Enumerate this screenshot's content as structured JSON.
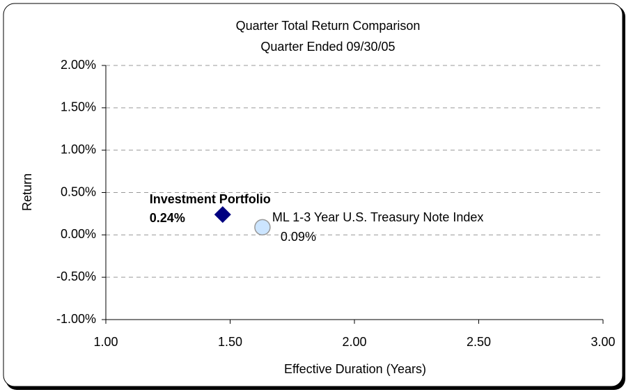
{
  "chart_data": {
    "type": "scatter",
    "title": "Quarter Total Return Comparison",
    "subtitle": "Quarter Ended 09/30/05",
    "x_label": "Effective Duration (Years)",
    "y_label": "Return",
    "xlim": [
      1,
      3
    ],
    "xticks": [
      {
        "value": 1,
        "label": "1.00"
      },
      {
        "value": 1.5,
        "label": "1.50"
      },
      {
        "value": 2,
        "label": "2.00"
      },
      {
        "value": 2.5,
        "label": "2.50"
      },
      {
        "value": 3,
        "label": "3.00"
      }
    ],
    "ylim": [
      -1,
      2
    ],
    "yticks": [
      {
        "value": -1,
        "label": "-1.00%"
      },
      {
        "value": -0.5,
        "label": "-0.50%"
      },
      {
        "value": 0,
        "label": "0.00%"
      },
      {
        "value": 0.5,
        "label": "0.50%"
      },
      {
        "value": 1,
        "label": "1.00%"
      },
      {
        "value": 1.5,
        "label": "1.50%"
      },
      {
        "value": 2,
        "label": "2.00%"
      }
    ],
    "grid": true,
    "series": [
      {
        "name": "Investment Portfolio",
        "color": "#000080",
        "marker": "diamond",
        "x": [
          1.47
        ],
        "values": [
          0.24
        ],
        "value_labels": [
          "0.24%"
        ]
      },
      {
        "name": "ML 1-3 Year U.S. Treasury Note Index",
        "color": "#cce5ff",
        "marker": "circle",
        "x": [
          1.63
        ],
        "values": [
          0.09
        ],
        "value_labels": [
          "0.09%"
        ]
      }
    ]
  }
}
